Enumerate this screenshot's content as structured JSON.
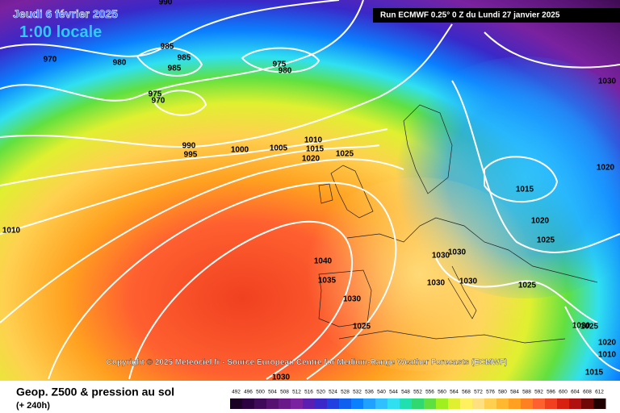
{
  "header": {
    "date": "Jeudi 6 février 2025",
    "time": "1:00 locale",
    "run": "Run ECMWF 0.25° 0 Z du Lundi 27 janvier 2025"
  },
  "copyright": "Copyright © 2025 Meteociel.fr - Source European Centre for Medium-Range Weather Forecasts (ECMWF)",
  "footer": {
    "title": "Geop. Z500 & pression au sol",
    "lead": "(+ 240h)"
  },
  "isobar_labels": [
    "990",
    "970",
    "980",
    "985",
    "985",
    "985",
    "975",
    "980",
    "975",
    "970",
    "990",
    "995",
    "1000",
    "1005",
    "1010",
    "1015",
    "1020",
    "1025",
    "1030",
    "1020",
    "1015",
    "1020",
    "1025",
    "1040",
    "1035",
    "1030",
    "1030",
    "1030",
    "1030",
    "1030",
    "1025",
    "1010",
    "1025",
    "1030",
    "1025",
    "1020",
    "1010",
    "1015",
    "1030"
  ],
  "colorbar": {
    "labels": [
      492,
      496,
      500,
      504,
      508,
      512,
      516,
      520,
      524,
      528,
      532,
      536,
      540,
      544,
      548,
      552,
      556,
      560,
      564,
      568,
      572,
      576,
      580,
      584,
      588,
      592,
      596,
      600,
      604,
      608,
      612
    ],
    "colors": [
      "#1a0022",
      "#2c0040",
      "#3f0a5a",
      "#551270",
      "#6a1a88",
      "#7a22a0",
      "#5a1fb0",
      "#3a28c8",
      "#2040e0",
      "#1060f0",
      "#0a80ff",
      "#20a0ff",
      "#30c0ff",
      "#30e0f0",
      "#20e0b0",
      "#30d870",
      "#60e040",
      "#a0f020",
      "#e0f030",
      "#fff060",
      "#ffe080",
      "#ffd050",
      "#ffb830",
      "#ffa020",
      "#ff8020",
      "#ff6030",
      "#f04020",
      "#d82010",
      "#b01010",
      "#700808",
      "#200000"
    ]
  }
}
